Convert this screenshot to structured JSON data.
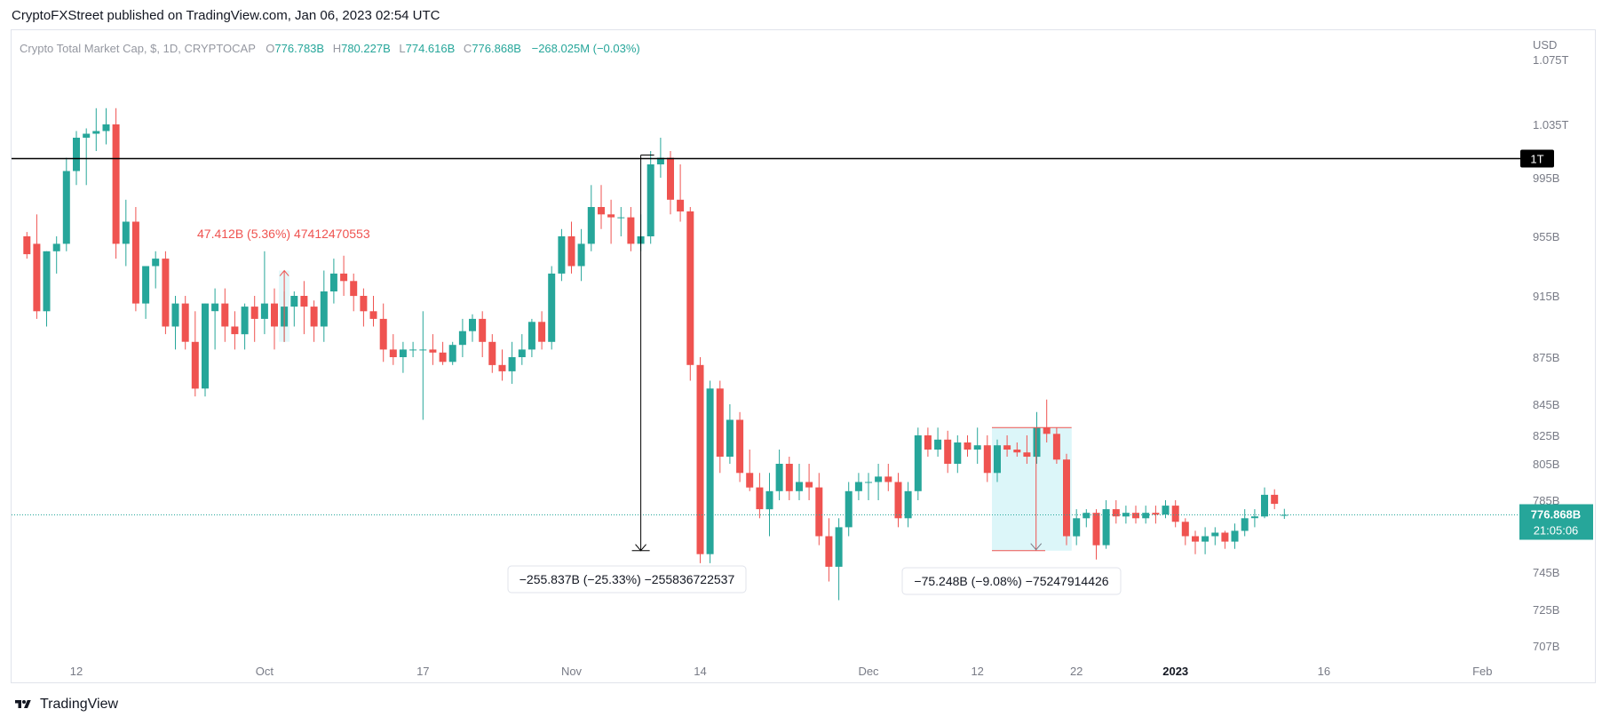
{
  "header": {
    "published_text": "CryptoFXStreet published on TradingView.com, Jan 06, 2023 02:54 UTC"
  },
  "footer": {
    "brand_text": "TradingView"
  },
  "colors": {
    "up": "#26a69a",
    "down": "#ef5350",
    "ref_line": "#000000",
    "price_label_bg": "#26a69a"
  },
  "chart_data": {
    "type": "candlestick",
    "title": "Crypto Total Market Cap, $, 1D, CRYPTOCAP",
    "legend": {
      "O_label": "O",
      "O": "776.783B",
      "H_label": "H",
      "H": "780.227B",
      "L_label": "L",
      "L": "774.616B",
      "C_label": "C",
      "C": "776.868B",
      "change": "−268.025M (−0.03%)"
    },
    "y_axis": {
      "unit": "USD",
      "ticks": [
        {
          "label": "1.075T",
          "value": 1075
        },
        {
          "label": "1.035T",
          "value": 1035
        },
        {
          "label": "995B",
          "value": 995
        },
        {
          "label": "955B",
          "value": 955
        },
        {
          "label": "915B",
          "value": 915
        },
        {
          "label": "875B",
          "value": 875
        },
        {
          "label": "845B",
          "value": 845
        },
        {
          "label": "825B",
          "value": 825
        },
        {
          "label": "805B",
          "value": 805
        },
        {
          "label": "785B",
          "value": 785
        },
        {
          "label": "745B",
          "value": 745
        },
        {
          "label": "725B",
          "value": 725
        },
        {
          "label": "707B",
          "value": 707
        }
      ]
    },
    "x_axis": {
      "ticks": [
        {
          "label": "12",
          "date": "2022-09-12"
        },
        {
          "label": "Oct",
          "date": "2022-10-01"
        },
        {
          "label": "17",
          "date": "2022-10-17"
        },
        {
          "label": "Nov",
          "date": "2022-11-01"
        },
        {
          "label": "14",
          "date": "2022-11-14"
        },
        {
          "label": "Dec",
          "date": "2022-12-01"
        },
        {
          "label": "12",
          "date": "2022-12-12"
        },
        {
          "label": "22",
          "date": "2022-12-22"
        },
        {
          "label": "2023",
          "date": "2023-01-01"
        },
        {
          "label": "16",
          "date": "2023-01-16"
        },
        {
          "label": "Feb",
          "date": "2023-02-01"
        }
      ]
    },
    "horizontal_line": {
      "label": "1T",
      "value": 1000
    },
    "last_price": {
      "label": "776.868B",
      "countdown": "21:05:06",
      "value": 776.868
    },
    "measurements": [
      {
        "text": "47.412B (5.36%) 47412470553",
        "from": "2022-10-03",
        "to": "2022-10-03",
        "low": 885,
        "high": 932
      },
      {
        "text": "−255.837B (−25.33%) −255836722537",
        "from": "2022-11-08",
        "to": "2022-11-08",
        "low": 757,
        "high": 1012
      },
      {
        "text": "−75.248B (−9.08%) −75247914426",
        "from": "2022-12-14",
        "to": "2022-12-19",
        "low": 757,
        "high": 830
      }
    ],
    "candles": [
      {
        "date": "2022-09-07",
        "o": 955,
        "h": 958,
        "l": 940,
        "c": 943
      },
      {
        "date": "2022-09-08",
        "o": 950,
        "h": 970,
        "l": 900,
        "c": 905
      },
      {
        "date": "2022-09-09",
        "o": 905,
        "h": 945,
        "l": 895,
        "c": 945
      },
      {
        "date": "2022-09-10",
        "o": 945,
        "h": 955,
        "l": 930,
        "c": 950
      },
      {
        "date": "2022-09-11",
        "o": 950,
        "h": 1010,
        "l": 945,
        "c": 1000
      },
      {
        "date": "2022-09-12",
        "o": 1000,
        "h": 1030,
        "l": 990,
        "c": 1025
      },
      {
        "date": "2022-09-13",
        "o": 1025,
        "h": 1032,
        "l": 990,
        "c": 1028
      },
      {
        "date": "2022-09-14",
        "o": 1028,
        "h": 1045,
        "l": 1015,
        "c": 1030
      },
      {
        "date": "2022-09-15",
        "o": 1030,
        "h": 1045,
        "l": 1020,
        "c": 1035
      },
      {
        "date": "2022-09-16",
        "o": 1035,
        "h": 1045,
        "l": 940,
        "c": 950
      },
      {
        "date": "2022-09-17",
        "o": 950,
        "h": 980,
        "l": 935,
        "c": 965
      },
      {
        "date": "2022-09-18",
        "o": 965,
        "h": 975,
        "l": 905,
        "c": 910
      },
      {
        "date": "2022-09-19",
        "o": 910,
        "h": 935,
        "l": 900,
        "c": 935
      },
      {
        "date": "2022-09-20",
        "o": 935,
        "h": 945,
        "l": 920,
        "c": 940
      },
      {
        "date": "2022-09-21",
        "o": 940,
        "h": 945,
        "l": 890,
        "c": 895
      },
      {
        "date": "2022-09-22",
        "o": 895,
        "h": 915,
        "l": 880,
        "c": 910
      },
      {
        "date": "2022-09-23",
        "o": 910,
        "h": 915,
        "l": 880,
        "c": 885
      },
      {
        "date": "2022-09-24",
        "o": 885,
        "h": 905,
        "l": 850,
        "c": 855
      },
      {
        "date": "2022-09-25",
        "o": 855,
        "h": 910,
        "l": 850,
        "c": 910
      },
      {
        "date": "2022-09-26",
        "o": 905,
        "h": 920,
        "l": 880,
        "c": 910
      },
      {
        "date": "2022-09-27",
        "o": 910,
        "h": 920,
        "l": 885,
        "c": 895
      },
      {
        "date": "2022-09-28",
        "o": 895,
        "h": 905,
        "l": 880,
        "c": 890
      },
      {
        "date": "2022-09-29",
        "o": 890,
        "h": 910,
        "l": 880,
        "c": 908
      },
      {
        "date": "2022-09-30",
        "o": 908,
        "h": 915,
        "l": 885,
        "c": 900
      },
      {
        "date": "2022-10-01",
        "o": 900,
        "h": 945,
        "l": 890,
        "c": 910
      },
      {
        "date": "2022-10-02",
        "o": 910,
        "h": 920,
        "l": 880,
        "c": 895
      },
      {
        "date": "2022-10-03",
        "o": 895,
        "h": 918,
        "l": 885,
        "c": 908
      },
      {
        "date": "2022-10-04",
        "o": 908,
        "h": 918,
        "l": 895,
        "c": 915
      },
      {
        "date": "2022-10-05",
        "o": 915,
        "h": 925,
        "l": 890,
        "c": 908
      },
      {
        "date": "2022-10-06",
        "o": 908,
        "h": 912,
        "l": 885,
        "c": 895
      },
      {
        "date": "2022-10-07",
        "o": 895,
        "h": 932,
        "l": 885,
        "c": 918
      },
      {
        "date": "2022-10-08",
        "o": 918,
        "h": 940,
        "l": 910,
        "c": 930
      },
      {
        "date": "2022-10-09",
        "o": 930,
        "h": 942,
        "l": 915,
        "c": 925
      },
      {
        "date": "2022-10-10",
        "o": 925,
        "h": 930,
        "l": 905,
        "c": 915
      },
      {
        "date": "2022-10-11",
        "o": 915,
        "h": 920,
        "l": 895,
        "c": 905
      },
      {
        "date": "2022-10-12",
        "o": 905,
        "h": 915,
        "l": 895,
        "c": 900
      },
      {
        "date": "2022-10-13",
        "o": 900,
        "h": 910,
        "l": 872,
        "c": 880
      },
      {
        "date": "2022-10-14",
        "o": 880,
        "h": 890,
        "l": 870,
        "c": 875
      },
      {
        "date": "2022-10-15",
        "o": 875,
        "h": 885,
        "l": 865,
        "c": 880
      },
      {
        "date": "2022-10-16",
        "o": 880,
        "h": 885,
        "l": 875,
        "c": 880
      },
      {
        "date": "2022-10-17",
        "o": 880,
        "h": 905,
        "l": 835,
        "c": 880
      },
      {
        "date": "2022-10-18",
        "o": 880,
        "h": 890,
        "l": 870,
        "c": 878
      },
      {
        "date": "2022-10-19",
        "o": 878,
        "h": 885,
        "l": 870,
        "c": 872
      },
      {
        "date": "2022-10-20",
        "o": 872,
        "h": 885,
        "l": 870,
        "c": 883
      },
      {
        "date": "2022-10-21",
        "o": 883,
        "h": 900,
        "l": 875,
        "c": 892
      },
      {
        "date": "2022-10-22",
        "o": 892,
        "h": 903,
        "l": 885,
        "c": 900
      },
      {
        "date": "2022-10-23",
        "o": 900,
        "h": 905,
        "l": 875,
        "c": 885
      },
      {
        "date": "2022-10-24",
        "o": 885,
        "h": 890,
        "l": 865,
        "c": 870
      },
      {
        "date": "2022-10-25",
        "o": 870,
        "h": 880,
        "l": 860,
        "c": 866
      },
      {
        "date": "2022-10-26",
        "o": 866,
        "h": 885,
        "l": 858,
        "c": 875
      },
      {
        "date": "2022-10-27",
        "o": 875,
        "h": 890,
        "l": 870,
        "c": 880
      },
      {
        "date": "2022-10-28",
        "o": 880,
        "h": 900,
        "l": 875,
        "c": 898
      },
      {
        "date": "2022-10-29",
        "o": 898,
        "h": 905,
        "l": 880,
        "c": 885
      },
      {
        "date": "2022-10-30",
        "o": 885,
        "h": 935,
        "l": 880,
        "c": 930
      },
      {
        "date": "2022-10-31",
        "o": 930,
        "h": 960,
        "l": 925,
        "c": 955
      },
      {
        "date": "2022-11-01",
        "o": 955,
        "h": 965,
        "l": 930,
        "c": 935
      },
      {
        "date": "2022-11-02",
        "o": 935,
        "h": 960,
        "l": 925,
        "c": 950
      },
      {
        "date": "2022-11-03",
        "o": 950,
        "h": 990,
        "l": 945,
        "c": 975
      },
      {
        "date": "2022-11-04",
        "o": 975,
        "h": 990,
        "l": 960,
        "c": 970
      },
      {
        "date": "2022-11-05",
        "o": 970,
        "h": 980,
        "l": 950,
        "c": 968
      },
      {
        "date": "2022-11-06",
        "o": 968,
        "h": 975,
        "l": 955,
        "c": 968
      },
      {
        "date": "2022-11-07",
        "o": 968,
        "h": 975,
        "l": 945,
        "c": 950
      },
      {
        "date": "2022-11-08",
        "o": 950,
        "h": 970,
        "l": 945,
        "c": 955
      },
      {
        "date": "2022-11-09",
        "o": 955,
        "h": 1015,
        "l": 950,
        "c": 1005
      },
      {
        "date": "2022-11-10",
        "o": 1005,
        "h": 1025,
        "l": 995,
        "c": 1010
      },
      {
        "date": "2022-11-11",
        "o": 1010,
        "h": 1015,
        "l": 970,
        "c": 980
      },
      {
        "date": "2022-11-12",
        "o": 980,
        "h": 1005,
        "l": 965,
        "c": 972
      },
      {
        "date": "2022-11-13",
        "o": 972,
        "h": 975,
        "l": 860,
        "c": 870
      },
      {
        "date": "2022-11-14",
        "o": 870,
        "h": 875,
        "l": 750,
        "c": 755
      },
      {
        "date": "2022-11-15",
        "o": 755,
        "h": 860,
        "l": 750,
        "c": 855
      },
      {
        "date": "2022-11-16",
        "o": 855,
        "h": 860,
        "l": 800,
        "c": 810
      },
      {
        "date": "2022-11-17",
        "o": 810,
        "h": 845,
        "l": 805,
        "c": 835
      },
      {
        "date": "2022-11-18",
        "o": 835,
        "h": 840,
        "l": 795,
        "c": 800
      },
      {
        "date": "2022-11-19",
        "o": 800,
        "h": 815,
        "l": 790,
        "c": 792
      },
      {
        "date": "2022-11-20",
        "o": 792,
        "h": 800,
        "l": 775,
        "c": 780
      },
      {
        "date": "2022-11-21",
        "o": 780,
        "h": 800,
        "l": 765,
        "c": 790
      },
      {
        "date": "2022-11-22",
        "o": 790,
        "h": 815,
        "l": 785,
        "c": 805
      },
      {
        "date": "2022-11-23",
        "o": 805,
        "h": 810,
        "l": 785,
        "c": 790
      },
      {
        "date": "2022-11-24",
        "o": 790,
        "h": 805,
        "l": 785,
        "c": 795
      },
      {
        "date": "2022-11-25",
        "o": 795,
        "h": 805,
        "l": 785,
        "c": 792
      },
      {
        "date": "2022-11-26",
        "o": 792,
        "h": 800,
        "l": 760,
        "c": 765
      },
      {
        "date": "2022-11-27",
        "o": 765,
        "h": 775,
        "l": 740,
        "c": 748
      },
      {
        "date": "2022-11-28",
        "o": 748,
        "h": 775,
        "l": 730,
        "c": 770
      },
      {
        "date": "2022-11-29",
        "o": 770,
        "h": 795,
        "l": 765,
        "c": 790
      },
      {
        "date": "2022-11-30",
        "o": 790,
        "h": 800,
        "l": 785,
        "c": 795
      },
      {
        "date": "2022-12-01",
        "o": 795,
        "h": 800,
        "l": 785,
        "c": 795
      },
      {
        "date": "2022-12-02",
        "o": 795,
        "h": 805,
        "l": 785,
        "c": 798
      },
      {
        "date": "2022-12-03",
        "o": 798,
        "h": 805,
        "l": 790,
        "c": 795
      },
      {
        "date": "2022-12-04",
        "o": 795,
        "h": 800,
        "l": 770,
        "c": 775
      },
      {
        "date": "2022-12-05",
        "o": 775,
        "h": 795,
        "l": 770,
        "c": 790
      },
      {
        "date": "2022-12-06",
        "o": 790,
        "h": 830,
        "l": 785,
        "c": 825
      },
      {
        "date": "2022-12-07",
        "o": 825,
        "h": 830,
        "l": 810,
        "c": 815
      },
      {
        "date": "2022-12-08",
        "o": 815,
        "h": 830,
        "l": 810,
        "c": 822
      },
      {
        "date": "2022-12-09",
        "o": 822,
        "h": 828,
        "l": 800,
        "c": 805
      },
      {
        "date": "2022-12-10",
        "o": 805,
        "h": 825,
        "l": 800,
        "c": 820
      },
      {
        "date": "2022-12-11",
        "o": 820,
        "h": 825,
        "l": 810,
        "c": 815
      },
      {
        "date": "2022-12-12",
        "o": 815,
        "h": 830,
        "l": 805,
        "c": 818
      },
      {
        "date": "2022-12-13",
        "o": 818,
        "h": 825,
        "l": 795,
        "c": 800
      },
      {
        "date": "2022-12-14",
        "o": 800,
        "h": 822,
        "l": 795,
        "c": 818
      },
      {
        "date": "2022-12-15",
        "o": 818,
        "h": 825,
        "l": 810,
        "c": 815
      },
      {
        "date": "2022-12-16",
        "o": 815,
        "h": 820,
        "l": 810,
        "c": 813
      },
      {
        "date": "2022-12-17",
        "o": 813,
        "h": 825,
        "l": 805,
        "c": 810
      },
      {
        "date": "2022-12-18",
        "o": 810,
        "h": 840,
        "l": 805,
        "c": 830
      },
      {
        "date": "2022-12-19",
        "o": 830,
        "h": 848,
        "l": 820,
        "c": 826
      },
      {
        "date": "2022-12-20",
        "o": 826,
        "h": 830,
        "l": 805,
        "c": 808
      },
      {
        "date": "2022-12-21",
        "o": 808,
        "h": 812,
        "l": 760,
        "c": 765
      },
      {
        "date": "2022-12-22",
        "o": 765,
        "h": 780,
        "l": 760,
        "c": 775
      },
      {
        "date": "2022-12-23",
        "o": 775,
        "h": 780,
        "l": 770,
        "c": 778
      },
      {
        "date": "2022-12-24",
        "o": 778,
        "h": 780,
        "l": 752,
        "c": 760
      },
      {
        "date": "2022-12-25",
        "o": 760,
        "h": 785,
        "l": 758,
        "c": 780
      },
      {
        "date": "2022-12-26",
        "o": 780,
        "h": 785,
        "l": 772,
        "c": 776
      },
      {
        "date": "2022-12-27",
        "o": 776,
        "h": 782,
        "l": 772,
        "c": 778
      },
      {
        "date": "2022-12-28",
        "o": 778,
        "h": 782,
        "l": 772,
        "c": 775
      },
      {
        "date": "2022-12-29",
        "o": 775,
        "h": 782,
        "l": 772,
        "c": 778
      },
      {
        "date": "2022-12-30",
        "o": 778,
        "h": 782,
        "l": 772,
        "c": 777
      },
      {
        "date": "2022-12-31",
        "o": 777,
        "h": 785,
        "l": 775,
        "c": 782
      },
      {
        "date": "2023-01-01",
        "o": 782,
        "h": 785,
        "l": 770,
        "c": 773
      },
      {
        "date": "2023-01-02",
        "o": 773,
        "h": 775,
        "l": 760,
        "c": 765
      },
      {
        "date": "2023-01-03",
        "o": 765,
        "h": 768,
        "l": 755,
        "c": 762
      },
      {
        "date": "2023-01-04",
        "o": 762,
        "h": 770,
        "l": 755,
        "c": 765
      },
      {
        "date": "2023-01-05",
        "o": 765,
        "h": 770,
        "l": 760,
        "c": 767
      },
      {
        "date": "2023-01-06",
        "o": 767,
        "h": 768,
        "l": 758,
        "c": 762
      },
      {
        "date": "2023-01-07",
        "o": 762,
        "h": 772,
        "l": 758,
        "c": 768
      },
      {
        "date": "2023-01-08",
        "o": 768,
        "h": 780,
        "l": 765,
        "c": 775
      },
      {
        "date": "2023-01-09",
        "o": 775,
        "h": 780,
        "l": 770,
        "c": 776
      },
      {
        "date": "2023-01-10",
        "o": 776,
        "h": 792,
        "l": 775,
        "c": 788
      },
      {
        "date": "2023-01-11",
        "o": 788,
        "h": 791,
        "l": 780,
        "c": 783
      },
      {
        "date": "2023-01-12",
        "o": 776.783,
        "h": 780.227,
        "l": 774.616,
        "c": 776.868
      }
    ]
  }
}
